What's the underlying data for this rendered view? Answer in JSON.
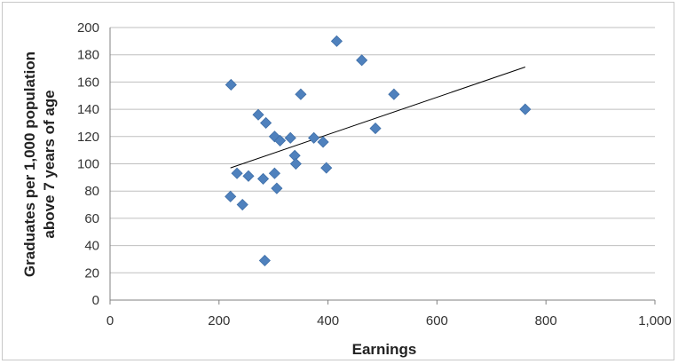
{
  "chart_data": {
    "type": "scatter",
    "title": "",
    "xlabel": "Earnings",
    "ylabel_line1": "Graduates per 1,000 population",
    "ylabel_line2": "above 7 years of age",
    "xlim": [
      0,
      1000
    ],
    "ylim": [
      0,
      200
    ],
    "x_ticks": [
      0,
      200,
      400,
      600,
      800,
      1000
    ],
    "x_tick_labels": [
      "0",
      "200",
      "400",
      "600",
      "800",
      "1,000"
    ],
    "y_ticks": [
      0,
      20,
      40,
      60,
      80,
      100,
      120,
      140,
      160,
      180,
      200
    ],
    "y_tick_labels": [
      "0",
      "20",
      "40",
      "60",
      "80",
      "100",
      "120",
      "140",
      "160",
      "180",
      "200"
    ],
    "grid": "horizontal",
    "legend": "none",
    "marker_color": "#4f81bd",
    "trendline_color": "#000000",
    "points": [
      {
        "x": 222,
        "y": 158
      },
      {
        "x": 221,
        "y": 76
      },
      {
        "x": 233,
        "y": 93
      },
      {
        "x": 243,
        "y": 70
      },
      {
        "x": 254,
        "y": 91
      },
      {
        "x": 272,
        "y": 136
      },
      {
        "x": 281,
        "y": 89
      },
      {
        "x": 284,
        "y": 29
      },
      {
        "x": 286,
        "y": 130
      },
      {
        "x": 302,
        "y": 93
      },
      {
        "x": 302,
        "y": 120
      },
      {
        "x": 306,
        "y": 82
      },
      {
        "x": 312,
        "y": 117
      },
      {
        "x": 331,
        "y": 119
      },
      {
        "x": 339,
        "y": 106
      },
      {
        "x": 341,
        "y": 100
      },
      {
        "x": 350,
        "y": 151
      },
      {
        "x": 374,
        "y": 119
      },
      {
        "x": 391,
        "y": 116
      },
      {
        "x": 397,
        "y": 97
      },
      {
        "x": 416,
        "y": 190
      },
      {
        "x": 462,
        "y": 176
      },
      {
        "x": 487,
        "y": 126
      },
      {
        "x": 521,
        "y": 151
      },
      {
        "x": 762,
        "y": 140
      }
    ],
    "trendline": {
      "x": [
        221,
        762
      ],
      "y": [
        97,
        171
      ]
    }
  }
}
